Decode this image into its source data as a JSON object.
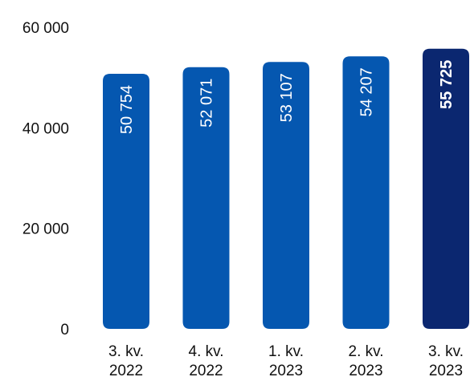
{
  "chart_data": {
    "type": "bar",
    "title": "",
    "xlabel": "",
    "ylabel": "",
    "ylim": [
      0,
      60000
    ],
    "yticks": [
      {
        "value": 0,
        "label": "0"
      },
      {
        "value": 20000,
        "label": "20 000"
      },
      {
        "value": 40000,
        "label": "40 000"
      },
      {
        "value": 60000,
        "label": "60 000"
      }
    ],
    "grid": false,
    "legend": "none",
    "categories": [
      {
        "line1": "3. kv.",
        "line2": "2022"
      },
      {
        "line1": "4. kv.",
        "line2": "2022"
      },
      {
        "line1": "1. kv.",
        "line2": "2023"
      },
      {
        "line1": "2. kv.",
        "line2": "2023"
      },
      {
        "line1": "3. kv.",
        "line2": "2023"
      }
    ],
    "values": [
      50754,
      52071,
      53107,
      54207,
      55725
    ],
    "value_labels": [
      "50 754",
      "52 071",
      "53 107",
      "54 207",
      "55 725"
    ],
    "highlight_index": 4,
    "colors": {
      "bar": "#0557b0",
      "highlight": "#0b2770"
    }
  }
}
